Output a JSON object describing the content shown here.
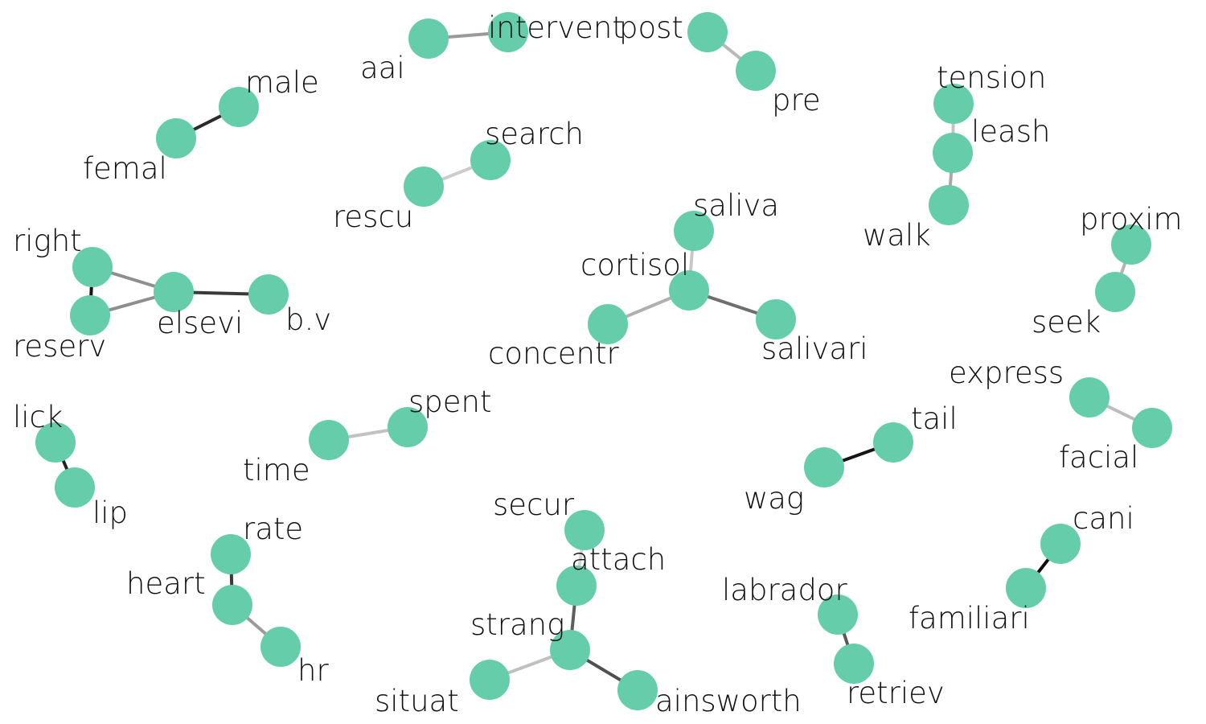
{
  "style": {
    "node_color": "#66cdaa",
    "label_color": "#111111",
    "background": "#ffffff"
  },
  "graph": {
    "nodes": [
      {
        "id": "male",
        "label": "male"
      },
      {
        "id": "femal",
        "label": "femal"
      },
      {
        "id": "aai",
        "label": "aai"
      },
      {
        "id": "intervent",
        "label": "intervent"
      },
      {
        "id": "post",
        "label": "post"
      },
      {
        "id": "pre",
        "label": "pre"
      },
      {
        "id": "tension",
        "label": "tension"
      },
      {
        "id": "leash",
        "label": "leash"
      },
      {
        "id": "walk",
        "label": "walk"
      },
      {
        "id": "search",
        "label": "search"
      },
      {
        "id": "rescu",
        "label": "rescu"
      },
      {
        "id": "saliva",
        "label": "saliva"
      },
      {
        "id": "cortisol",
        "label": "cortisol"
      },
      {
        "id": "concentr",
        "label": "concentr"
      },
      {
        "id": "salivari",
        "label": "salivari"
      },
      {
        "id": "proxim",
        "label": "proxim"
      },
      {
        "id": "seek",
        "label": "seek"
      },
      {
        "id": "right",
        "label": "right"
      },
      {
        "id": "reserv",
        "label": "reserv"
      },
      {
        "id": "elsevi",
        "label": "elsevi"
      },
      {
        "id": "b.v",
        "label": "b.v"
      },
      {
        "id": "express",
        "label": "express"
      },
      {
        "id": "facial",
        "label": "facial"
      },
      {
        "id": "lick",
        "label": "lick"
      },
      {
        "id": "lip",
        "label": "lip"
      },
      {
        "id": "spent",
        "label": "spent"
      },
      {
        "id": "time",
        "label": "time"
      },
      {
        "id": "tail",
        "label": "tail"
      },
      {
        "id": "wag",
        "label": "wag"
      },
      {
        "id": "secur",
        "label": "secur"
      },
      {
        "id": "attach",
        "label": "attach"
      },
      {
        "id": "strang",
        "label": "strang"
      },
      {
        "id": "situat",
        "label": "situat"
      },
      {
        "id": "ainsworth",
        "label": "ainsworth"
      },
      {
        "id": "rate",
        "label": "rate"
      },
      {
        "id": "heart",
        "label": "heart"
      },
      {
        "id": "hr",
        "label": "hr"
      },
      {
        "id": "labrador",
        "label": "labrador"
      },
      {
        "id": "retriev",
        "label": "retriev"
      },
      {
        "id": "cani",
        "label": "cani"
      },
      {
        "id": "familiari",
        "label": "familiari"
      }
    ],
    "edges": [
      {
        "source": "femal",
        "target": "male",
        "color": "#2b2b2b"
      },
      {
        "source": "aai",
        "target": "intervent",
        "color": "#9a9a9a"
      },
      {
        "source": "post",
        "target": "pre",
        "color": "#b8b8b8"
      },
      {
        "source": "tension",
        "target": "leash",
        "color": "#c4c4c4"
      },
      {
        "source": "leash",
        "target": "walk",
        "color": "#a8a8a8"
      },
      {
        "source": "rescu",
        "target": "search",
        "color": "#cccccc"
      },
      {
        "source": "cortisol",
        "target": "saliva",
        "color": "#c8c8c8"
      },
      {
        "source": "cortisol",
        "target": "concentr",
        "color": "#b0b0b0"
      },
      {
        "source": "cortisol",
        "target": "salivari",
        "color": "#6e6e6e"
      },
      {
        "source": "seek",
        "target": "proxim",
        "color": "#b4b4b4"
      },
      {
        "source": "right",
        "target": "reserv",
        "color": "#151515"
      },
      {
        "source": "right",
        "target": "elsevi",
        "color": "#8e8e8e"
      },
      {
        "source": "reserv",
        "target": "elsevi",
        "color": "#8e8e8e"
      },
      {
        "source": "elsevi",
        "target": "b.v",
        "color": "#3a3a3a"
      },
      {
        "source": "express",
        "target": "facial",
        "color": "#bcbcbc"
      },
      {
        "source": "lick",
        "target": "lip",
        "color": "#222222"
      },
      {
        "source": "time",
        "target": "spent",
        "color": "#c2c2c2"
      },
      {
        "source": "wag",
        "target": "tail",
        "color": "#151515"
      },
      {
        "source": "secur",
        "target": "attach",
        "color": "#d4d4d4"
      },
      {
        "source": "attach",
        "target": "strang",
        "color": "#5e5e5e"
      },
      {
        "source": "strang",
        "target": "situat",
        "color": "#c0c0c0"
      },
      {
        "source": "strang",
        "target": "ainsworth",
        "color": "#505050"
      },
      {
        "source": "rate",
        "target": "heart",
        "color": "#3a3a3a"
      },
      {
        "source": "heart",
        "target": "hr",
        "color": "#9a9a9a"
      },
      {
        "source": "labrador",
        "target": "retriev",
        "color": "#585858"
      },
      {
        "source": "cani",
        "target": "familiari",
        "color": "#0f0f0f"
      }
    ]
  }
}
